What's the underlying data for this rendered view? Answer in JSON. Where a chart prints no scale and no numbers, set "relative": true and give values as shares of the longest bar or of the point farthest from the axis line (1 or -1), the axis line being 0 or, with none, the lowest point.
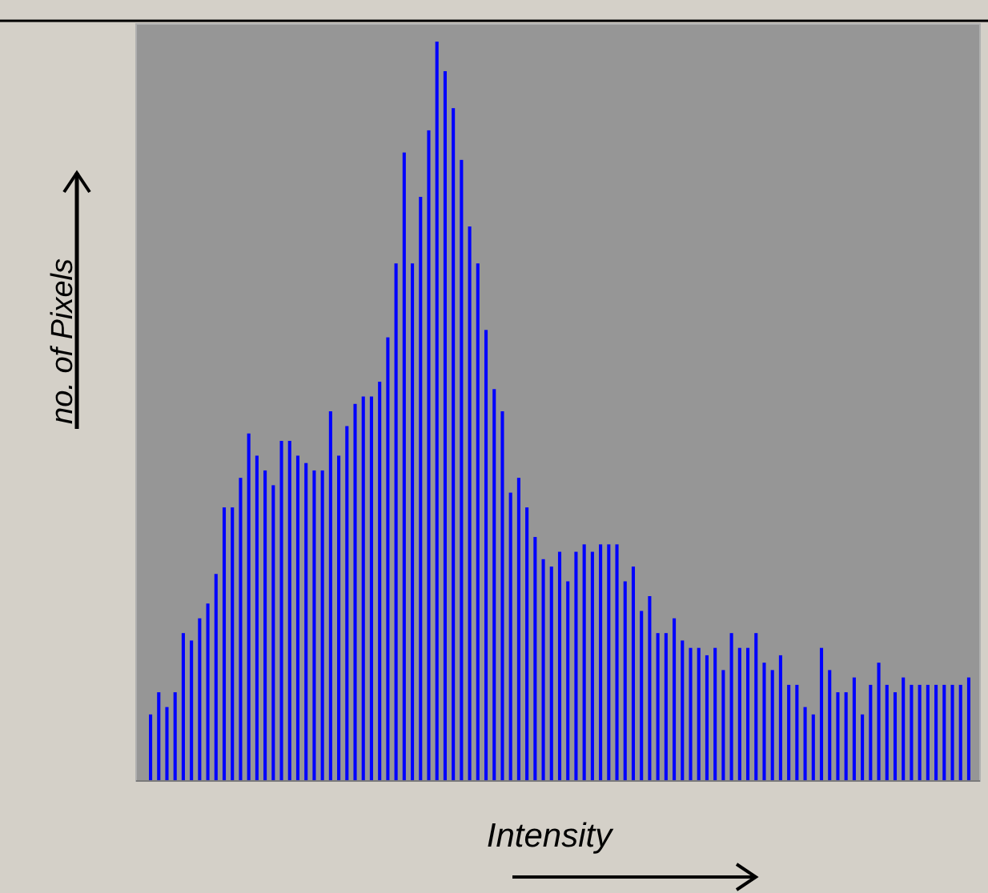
{
  "chart_data": {
    "type": "bar",
    "relative": true,
    "xlabel": "Intensity",
    "ylabel": "no. of Pixels",
    "color": "#0000ff",
    "categories": [
      null,
      null,
      null,
      null,
      null,
      null,
      null,
      null,
      null,
      null,
      null,
      null,
      null,
      null,
      null,
      null,
      null,
      null,
      null,
      null,
      null,
      null,
      null,
      null,
      null,
      null,
      null,
      null,
      null,
      null,
      null,
      null,
      null,
      null,
      null,
      null,
      null,
      null,
      null,
      null,
      null,
      null,
      null,
      null,
      null,
      null,
      null,
      null,
      null,
      null,
      null,
      null,
      null,
      null,
      null,
      null,
      null,
      null,
      null,
      null,
      null,
      null,
      null,
      null,
      null,
      null,
      null,
      null,
      null,
      null,
      null,
      null,
      null,
      null,
      null,
      null,
      null,
      null,
      null,
      null,
      null,
      null,
      null,
      null,
      null,
      null,
      null,
      null,
      null,
      null,
      null,
      null,
      null,
      null,
      null,
      null,
      null,
      null,
      null,
      null,
      null
    ],
    "values": [
      0.09,
      0.12,
      0.1,
      0.12,
      0.2,
      0.19,
      0.22,
      0.24,
      0.28,
      0.37,
      0.37,
      0.41,
      0.47,
      0.44,
      0.42,
      0.4,
      0.46,
      0.46,
      0.44,
      0.43,
      0.42,
      0.42,
      0.5,
      0.44,
      0.48,
      0.51,
      0.52,
      0.52,
      0.54,
      0.6,
      0.7,
      0.85,
      0.7,
      0.79,
      0.88,
      1,
      0.96,
      0.91,
      0.84,
      0.75,
      0.7,
      0.61,
      0.53,
      0.5,
      0.39,
      0.41,
      0.37,
      0.33,
      0.3,
      0.29,
      0.31,
      0.27,
      0.31,
      0.32,
      0.31,
      0.32,
      0.32,
      0.32,
      0.27,
      0.29,
      0.23,
      0.25,
      0.2,
      0.2,
      0.22,
      0.19,
      0.18,
      0.18,
      0.17,
      0.18,
      0.15,
      0.2,
      0.18,
      0.18,
      0.2,
      0.16,
      0.15,
      0.17,
      0.13,
      0.13,
      0.1,
      0.09,
      0.18,
      0.15,
      0.12,
      0.12,
      0.14,
      0.09,
      0.13,
      0.16,
      0.13,
      0.12,
      0.14,
      0.13,
      0.13,
      0.13,
      0.13,
      0.13,
      0.13,
      0.13,
      0.14
    ]
  }
}
